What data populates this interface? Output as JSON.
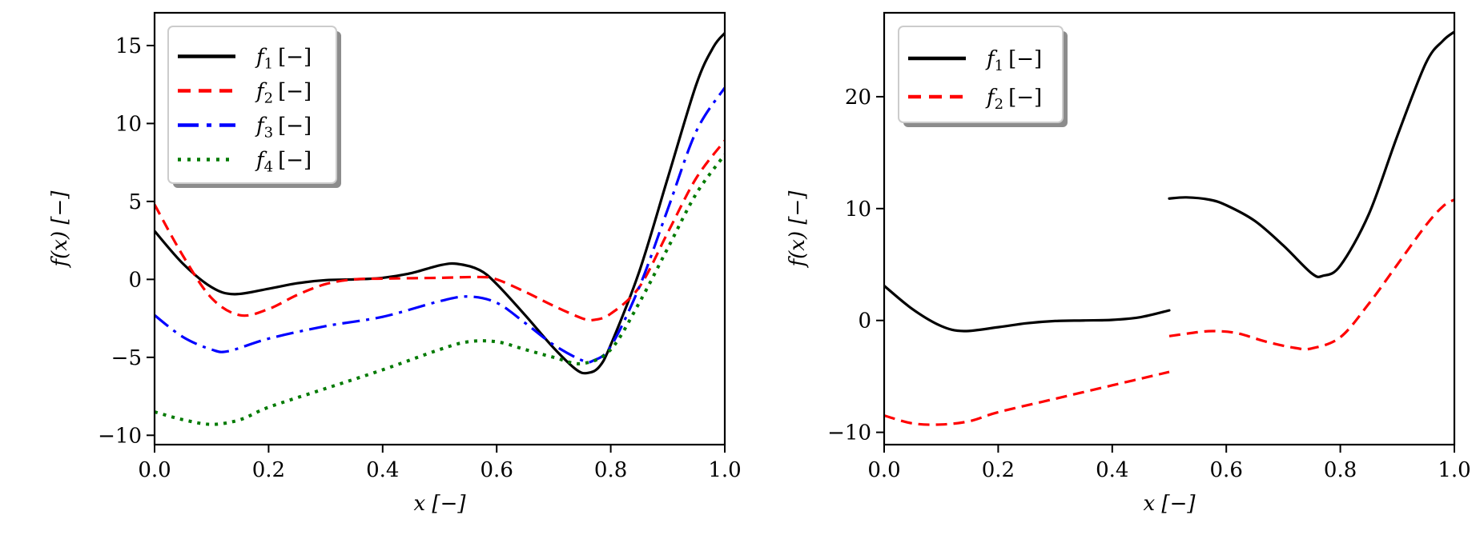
{
  "chart_data": [
    {
      "type": "line",
      "title": "",
      "xlabel": "x [−]",
      "ylabel": "f(x) [−]",
      "xlim": [
        0.0,
        1.0
      ],
      "ylim": [
        -10.6,
        17.1
      ],
      "xticks": [
        0.0,
        0.2,
        0.4,
        0.6,
        0.8,
        1.0
      ],
      "xtick_labels": [
        "0.0",
        "0.2",
        "0.4",
        "0.6",
        "0.8",
        "1.0"
      ],
      "yticks": [
        -10,
        -5,
        0,
        5,
        10,
        15
      ],
      "ytick_labels": [
        "−10",
        "−5",
        "0",
        "5",
        "10",
        "15"
      ],
      "grid": false,
      "legend_placement": "top-left",
      "series": [
        {
          "name": "f1 [−]",
          "label_main": "f",
          "label_sub": "1",
          "label_unit": "[−]",
          "color": "#000000",
          "style": "solid",
          "segments": [
            {
              "x": [
                0,
                0.05,
                0.1,
                0.14,
                0.2,
                0.25,
                0.3,
                0.35,
                0.4,
                0.45,
                0.5,
                0.53,
                0.57,
                0.6,
                0.65,
                0.7,
                0.74,
                0.76,
                0.78,
                0.8,
                0.85,
                0.9,
                0.95,
                0.98,
                1.0
              ],
              "y": [
                3.1,
                1.0,
                -0.5,
                -0.95,
                -0.6,
                -0.25,
                -0.05,
                0.0,
                0.1,
                0.4,
                0.9,
                1.0,
                0.6,
                -0.3,
                -2.3,
                -4.4,
                -5.8,
                -6.0,
                -5.6,
                -4.2,
                0.5,
                6.5,
                12.5,
                14.9,
                15.8
              ]
            }
          ]
        },
        {
          "name": "f2 [−]",
          "label_main": "f",
          "label_sub": "2",
          "label_unit": "[−]",
          "color": "#ff0000",
          "style": "dashed",
          "segments": [
            {
              "x": [
                0,
                0.05,
                0.1,
                0.15,
                0.2,
                0.25,
                0.3,
                0.35,
                0.4,
                0.5,
                0.57,
                0.6,
                0.65,
                0.7,
                0.75,
                0.77,
                0.8,
                0.85,
                0.9,
                0.95,
                1.0
              ],
              "y": [
                4.8,
                1.5,
                -1.2,
                -2.3,
                -1.9,
                -1.0,
                -0.3,
                0.0,
                0.05,
                0.1,
                0.15,
                0.0,
                -0.8,
                -1.7,
                -2.5,
                -2.6,
                -2.2,
                -0.5,
                3.0,
                6.5,
                8.9
              ]
            }
          ]
        },
        {
          "name": "f3 [−]",
          "label_main": "f",
          "label_sub": "3",
          "label_unit": "[−]",
          "color": "#0000ff",
          "style": "dashdot",
          "segments": [
            {
              "x": [
                0,
                0.05,
                0.1,
                0.13,
                0.2,
                0.3,
                0.4,
                0.5,
                0.55,
                0.6,
                0.65,
                0.7,
                0.75,
                0.77,
                0.8,
                0.85,
                0.9,
                0.95,
                1.0
              ],
              "y": [
                -2.3,
                -3.7,
                -4.5,
                -4.6,
                -3.8,
                -3.0,
                -2.4,
                -1.4,
                -1.1,
                -1.5,
                -2.8,
                -4.2,
                -5.2,
                -5.2,
                -4.3,
                -0.5,
                4.5,
                9.5,
                12.3
              ]
            }
          ]
        },
        {
          "name": "f4 [−]",
          "label_main": "f",
          "label_sub": "4",
          "label_unit": "[−]",
          "color": "#007a00",
          "style": "dotted",
          "segments": [
            {
              "x": [
                0,
                0.05,
                0.1,
                0.15,
                0.2,
                0.3,
                0.4,
                0.5,
                0.55,
                0.6,
                0.65,
                0.7,
                0.75,
                0.8,
                0.85,
                0.9,
                0.95,
                1.0
              ],
              "y": [
                -8.5,
                -9.0,
                -9.3,
                -9.0,
                -8.2,
                -7.0,
                -5.8,
                -4.5,
                -4.0,
                -4.0,
                -4.5,
                -5.0,
                -5.4,
                -4.5,
                -1.5,
                2.0,
                5.5,
                8.0
              ]
            }
          ]
        }
      ]
    },
    {
      "type": "line",
      "title": "",
      "xlabel": "x [−]",
      "ylabel": "f(x) [−]",
      "xlim": [
        0.0,
        1.0
      ],
      "ylim": [
        -11.1,
        27.5
      ],
      "xticks": [
        0.0,
        0.2,
        0.4,
        0.6,
        0.8,
        1.0
      ],
      "xtick_labels": [
        "0.0",
        "0.2",
        "0.4",
        "0.6",
        "0.8",
        "1.0"
      ],
      "yticks": [
        -10,
        0,
        10,
        20
      ],
      "ytick_labels": [
        "−10",
        "0",
        "10",
        "20"
      ],
      "grid": false,
      "legend_placement": "top-left",
      "series": [
        {
          "name": "f1 [−]",
          "label_main": "f",
          "label_sub": "1",
          "label_unit": "[−]",
          "color": "#000000",
          "style": "solid",
          "segments": [
            {
              "x": [
                0,
                0.05,
                0.1,
                0.14,
                0.2,
                0.25,
                0.3,
                0.35,
                0.4,
                0.45,
                0.5
              ],
              "y": [
                3.1,
                1.0,
                -0.5,
                -0.95,
                -0.6,
                -0.25,
                -0.05,
                0.0,
                0.05,
                0.3,
                0.9
              ]
            },
            {
              "x": [
                0.5,
                0.53,
                0.57,
                0.6,
                0.65,
                0.7,
                0.75,
                0.77,
                0.8,
                0.85,
                0.9,
                0.95,
                0.98,
                1.0
              ],
              "y": [
                10.9,
                11.0,
                10.8,
                10.3,
                8.9,
                6.7,
                4.2,
                4.0,
                4.9,
                9.5,
                16.5,
                23.0,
                25.0,
                25.8
              ]
            }
          ]
        },
        {
          "name": "f2 [−]",
          "label_main": "f",
          "label_sub": "2",
          "label_unit": "[−]",
          "color": "#ff0000",
          "style": "dashed",
          "segments": [
            {
              "x": [
                0,
                0.05,
                0.1,
                0.15,
                0.2,
                0.3,
                0.4,
                0.5
              ],
              "y": [
                -8.5,
                -9.2,
                -9.3,
                -9.0,
                -8.2,
                -7.0,
                -5.8,
                -4.6
              ]
            },
            {
              "x": [
                0.5,
                0.55,
                0.58,
                0.62,
                0.67,
                0.72,
                0.75,
                0.8,
                0.85,
                0.9,
                0.95,
                0.98,
                1.0
              ],
              "y": [
                -1.4,
                -1.05,
                -0.95,
                -1.15,
                -1.9,
                -2.45,
                -2.5,
                -1.5,
                1.5,
                5.0,
                8.5,
                10.2,
                10.8
              ]
            }
          ]
        }
      ]
    }
  ]
}
